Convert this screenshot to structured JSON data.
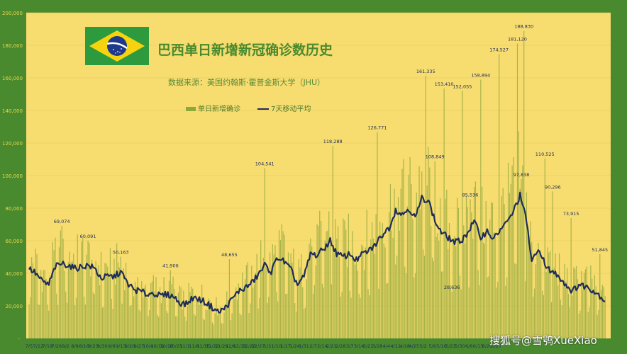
{
  "colors": {
    "frame": "#4a8a2e",
    "plot_bg": "#f7dc6f",
    "bars": "#a9b44a",
    "line": "#1e2d5a",
    "tick_text": "#e8d84a",
    "label_text": "#1e2d5a",
    "flag_green": "#2e9a3e",
    "flag_yellow": "#f5d40f",
    "flag_blue": "#1f3a8a"
  },
  "watermark": "搜狐号@雪鸮XueXiao",
  "chart_data": {
    "type": "bar",
    "title": "巴西单日新增新冠确诊数历史",
    "subtitle": "数据来源：美国约翰斯·霍普金斯大学（JHU）",
    "legend": {
      "position": "top-center",
      "entries": [
        "单日新增确诊",
        "7天移动平均"
      ]
    },
    "ylim": [
      0,
      200000
    ],
    "y_ticks": [
      "-",
      "20,000",
      "40,000",
      "60,000",
      "80,000",
      "100,000",
      "120,000",
      "140,000",
      "160,000",
      "180,000",
      "200,000"
    ],
    "x_tick_labels": [
      "7/5",
      "7/12",
      "7/19",
      "7/26",
      "8/2",
      "8/9",
      "8/16",
      "8/23",
      "8/30",
      "9/6",
      "9/13",
      "9/20",
      "9/27",
      "10/4",
      "10/11",
      "10/18",
      "10/25",
      "11/1",
      "11/8",
      "11/15",
      "11/22",
      "11/29",
      "12/6",
      "12/13",
      "12/20",
      "12/27",
      "1/3",
      "1/10",
      "1/17",
      "1/24",
      "1/31",
      "2/7",
      "2/14",
      "2/21",
      "2/28",
      "3/7",
      "3/14",
      "3/21",
      "3/28",
      "4/4",
      "4/11",
      "4/18",
      "4/25",
      "5/2",
      "5/9",
      "5/16",
      "5/23",
      "5/30",
      "6/6",
      "6/13",
      "6/20",
      "6/27"
    ],
    "x_tick_step": 7,
    "grid": true,
    "annotations": [
      {
        "day": 25,
        "value": 69074,
        "text": "69,074"
      },
      {
        "day": 45,
        "value": 60091,
        "text": "60,091"
      },
      {
        "day": 70,
        "value": 50163,
        "text": "50,163"
      },
      {
        "day": 108,
        "value": 41906,
        "text": "41,906"
      },
      {
        "day": 153,
        "value": 48655,
        "text": "48,655"
      },
      {
        "day": 180,
        "value": 104541,
        "text": "104,541"
      },
      {
        "day": 232,
        "value": 118288,
        "text": "118,288"
      },
      {
        "day": 266,
        "value": 126771,
        "text": "126,771"
      },
      {
        "day": 303,
        "value": 161335,
        "text": "161,335"
      },
      {
        "day": 310,
        "value": 108849,
        "text": "108,849"
      },
      {
        "day": 317,
        "value": 153410,
        "text": "153,410"
      },
      {
        "day": 323,
        "value": 28636,
        "text": "28,636"
      },
      {
        "day": 331,
        "value": 152055,
        "text": "152,055"
      },
      {
        "day": 337,
        "value": 85536,
        "text": "85,536"
      },
      {
        "day": 345,
        "value": 158894,
        "text": "158,894"
      },
      {
        "day": 359,
        "value": 174527,
        "text": "174,527"
      },
      {
        "day": 373,
        "value": 181120,
        "text": "181,120"
      },
      {
        "day": 376,
        "value": 97838,
        "text": "97,838"
      },
      {
        "day": 378,
        "value": 188830,
        "text": "188,830"
      },
      {
        "day": 394,
        "value": 110525,
        "text": "110,525"
      },
      {
        "day": 400,
        "value": 90296,
        "text": "90,296"
      },
      {
        "day": 414,
        "value": 73915,
        "text": "73,915"
      },
      {
        "day": 436,
        "value": 51845,
        "text": "51,845"
      }
    ],
    "avg_anchors": [
      [
        0,
        43000
      ],
      [
        5,
        40000
      ],
      [
        10,
        35000
      ],
      [
        15,
        33000
      ],
      [
        20,
        44000
      ],
      [
        25,
        46000
      ],
      [
        30,
        45000
      ],
      [
        35,
        43000
      ],
      [
        40,
        44000
      ],
      [
        45,
        45000
      ],
      [
        50,
        43000
      ],
      [
        55,
        37000
      ],
      [
        60,
        38000
      ],
      [
        65,
        38000
      ],
      [
        70,
        41000
      ],
      [
        75,
        34000
      ],
      [
        80,
        30000
      ],
      [
        85,
        29000
      ],
      [
        90,
        27000
      ],
      [
        95,
        28000
      ],
      [
        100,
        26000
      ],
      [
        105,
        27000
      ],
      [
        110,
        26000
      ],
      [
        115,
        22000
      ],
      [
        120,
        21000
      ],
      [
        125,
        25000
      ],
      [
        130,
        24000
      ],
      [
        135,
        22000
      ],
      [
        140,
        19000
      ],
      [
        145,
        16000
      ],
      [
        150,
        19000
      ],
      [
        155,
        24000
      ],
      [
        160,
        29000
      ],
      [
        165,
        31000
      ],
      [
        170,
        34000
      ],
      [
        175,
        39000
      ],
      [
        180,
        45000
      ],
      [
        185,
        41000
      ],
      [
        190,
        50000
      ],
      [
        195,
        47000
      ],
      [
        200,
        42000
      ],
      [
        205,
        33000
      ],
      [
        210,
        38000
      ],
      [
        215,
        52000
      ],
      [
        220,
        51000
      ],
      [
        225,
        55000
      ],
      [
        230,
        60000
      ],
      [
        235,
        52000
      ],
      [
        240,
        50000
      ],
      [
        245,
        52000
      ],
      [
        250,
        48000
      ],
      [
        255,
        52000
      ],
      [
        260,
        54000
      ],
      [
        265,
        58000
      ],
      [
        270,
        64000
      ],
      [
        275,
        68000
      ],
      [
        280,
        79000
      ],
      [
        285,
        76000
      ],
      [
        290,
        80000
      ],
      [
        295,
        74000
      ],
      [
        300,
        86000
      ],
      [
        305,
        85000
      ],
      [
        310,
        72000
      ],
      [
        315,
        65000
      ],
      [
        320,
        62000
      ],
      [
        325,
        59000
      ],
      [
        330,
        60000
      ],
      [
        335,
        65000
      ],
      [
        340,
        72000
      ],
      [
        345,
        62000
      ],
      [
        350,
        66000
      ],
      [
        355,
        61000
      ],
      [
        360,
        67000
      ],
      [
        365,
        71000
      ],
      [
        370,
        78000
      ],
      [
        375,
        88000
      ],
      [
        380,
        72000
      ],
      [
        384,
        47000
      ],
      [
        390,
        55000
      ],
      [
        395,
        43000
      ],
      [
        400,
        41000
      ],
      [
        405,
        38000
      ],
      [
        410,
        33000
      ],
      [
        415,
        29000
      ],
      [
        420,
        33000
      ],
      [
        425,
        32000
      ],
      [
        430,
        30000
      ],
      [
        435,
        27000
      ],
      [
        440,
        23000
      ]
    ],
    "bar_profile_note": "daily bars oscillate around the 7-day average with weekly spikes; peaks given in annotations"
  }
}
